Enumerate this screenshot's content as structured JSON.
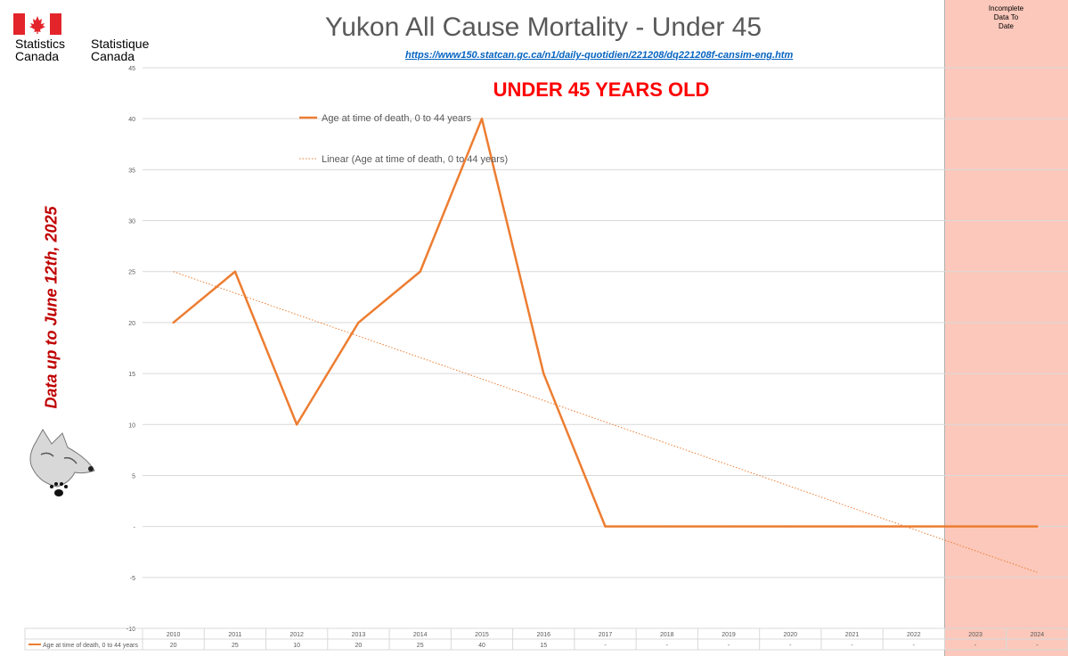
{
  "header": {
    "org_en": [
      "Statistics",
      "Canada"
    ],
    "org_fr": [
      "Statistique",
      "Canada"
    ],
    "source_url": "https://www150.statcan.gc.ca/n1/daily-quotidien/221208/dq221208f-cansim-eng.htm"
  },
  "annotations": {
    "side_note": "Data up to June 12th, 2025",
    "incomplete": [
      "Incomplete",
      "Data To",
      "Date"
    ]
  },
  "colors": {
    "series": "#ed7d31",
    "trend": "#ed7d31",
    "incomplete_region": "#fbc8bb",
    "highlight_text": "#ff0000",
    "side_note": "#c00000"
  },
  "chart_data": {
    "type": "line",
    "title": "Yukon All Cause Mortality - Under 45",
    "subtitle": "UNDER 45 YEARS OLD",
    "categories": [
      "2010",
      "2011",
      "2012",
      "2013",
      "2014",
      "2015",
      "2016",
      "2017",
      "2018",
      "2019",
      "2020",
      "2021",
      "2022",
      "2023",
      "2024"
    ],
    "series": [
      {
        "name": "Age at time of death, 0 to 44 years",
        "values": [
          20,
          25,
          10,
          20,
          25,
          40,
          15,
          0,
          0,
          0,
          0,
          0,
          0,
          0,
          0
        ],
        "table_labels": [
          "20",
          "25",
          "10",
          "20",
          "25",
          "40",
          "15",
          "-",
          "-",
          "-",
          "-",
          "-",
          "-",
          "-",
          "-"
        ]
      }
    ],
    "trendline": {
      "name": "Linear (Age at time of death, 0 to 44 years)",
      "start": 25.0,
      "end": -4.5
    },
    "ylim": [
      -10,
      45
    ],
    "yticks": [
      -10,
      -5,
      0,
      5,
      10,
      15,
      20,
      25,
      30,
      35,
      40,
      45
    ],
    "ytick_labels": [
      "-10",
      "-5",
      "-",
      "5",
      "10",
      "15",
      "20",
      "25",
      "30",
      "35",
      "40",
      "45"
    ],
    "grid": true,
    "legend": "top-center",
    "incomplete_categories": [
      "2023",
      "2024"
    ]
  }
}
